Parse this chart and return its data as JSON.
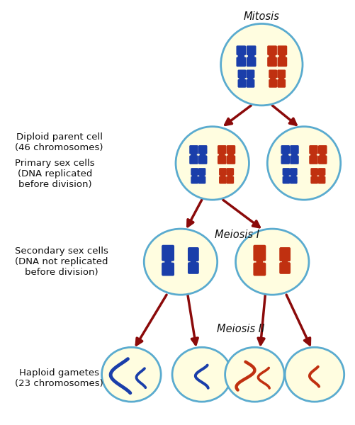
{
  "background_color": "#ffffff",
  "cell_fill": "#fffde0",
  "cell_edge": "#5aabcf",
  "arrow_color": "#8b0a0a",
  "blue_chr": "#1a3eaa",
  "red_chr": "#c03010",
  "text_color": "#111111",
  "title": "Mitosis",
  "label_diploid": "Diploid parent cell\n(46 chromosomes)",
  "label_primary": "Primary sex cells\n(DNA replicated\nbefore division)",
  "label_secondary": "Secondary sex cells\n(DNA not replicated\nbefore division)",
  "label_meiosis1": "Meiosis I",
  "label_meiosis2": "Meiosis II",
  "label_haploid": "Haploid gametes\n(23 chromosomes)"
}
